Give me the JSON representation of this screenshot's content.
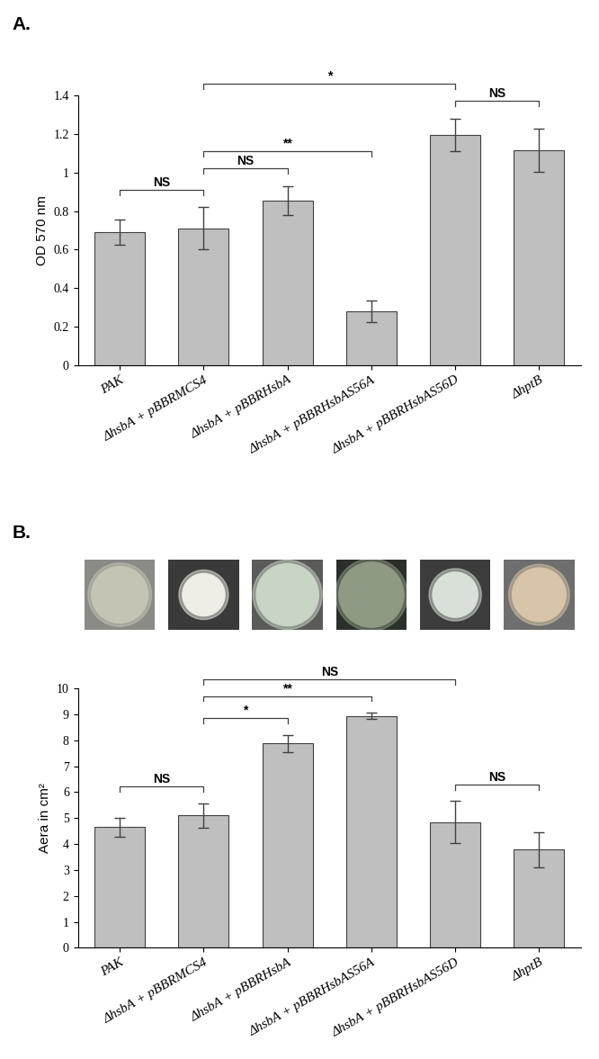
{
  "chart_data": [
    {
      "type": "bar",
      "title": "A.",
      "ylabel": "OD 570 nm",
      "categories": [
        "PAK",
        "ΔhsbA + pBBRMCS4",
        "ΔhsbA + pBBRHsbA",
        "ΔhsbA + pBBRHsbAS56A",
        "ΔhsbA + pBBRHsbAS56D",
        "ΔhptB"
      ],
      "values": [
        0.69,
        0.71,
        0.855,
        0.28,
        1.195,
        1.115
      ],
      "errors": [
        0.065,
        0.11,
        0.075,
        0.055,
        0.085,
        0.11
      ],
      "color": "#bfbfbf",
      "ylim": [
        0,
        1.4
      ],
      "yticks": [
        0,
        0.2,
        0.4,
        0.6,
        0.8,
        1,
        1.2,
        1.4
      ],
      "significance": [
        {
          "from": 0,
          "to": 1,
          "label": "NS"
        },
        {
          "from": 1,
          "to": 2,
          "label": "NS"
        },
        {
          "from": 1,
          "to": 3,
          "label": "**"
        },
        {
          "from": 1,
          "to": 4,
          "label": "*"
        },
        {
          "from": 4,
          "to": 5,
          "label": "NS"
        }
      ]
    },
    {
      "type": "bar",
      "title": "B.",
      "ylabel": "Aera in cm²",
      "categories": [
        "PAK",
        "ΔhsbA + pBBRMCS4",
        "ΔhsbA + pBBRHsbA",
        "ΔhsbA + pBBRHsbAS56A",
        "ΔhsbA + pBBRHsbAS56D",
        "ΔhptB"
      ],
      "values": [
        4.65,
        5.1,
        7.88,
        8.93,
        4.85,
        3.78
      ],
      "errors": [
        0.37,
        0.47,
        0.33,
        0.12,
        0.8,
        0.68
      ],
      "color": "#bfbfbf",
      "ylim": [
        0,
        10
      ],
      "yticks": [
        0,
        1,
        2,
        3,
        4,
        5,
        6,
        7,
        8,
        9,
        10
      ],
      "significance": [
        {
          "from": 0,
          "to": 1,
          "label": "NS"
        },
        {
          "from": 1,
          "to": 2,
          "label": "*"
        },
        {
          "from": 1,
          "to": 3,
          "label": "**"
        },
        {
          "from": 1,
          "to": 4,
          "label": "NS"
        },
        {
          "from": 4,
          "to": 5,
          "label": "NS"
        }
      ]
    }
  ]
}
